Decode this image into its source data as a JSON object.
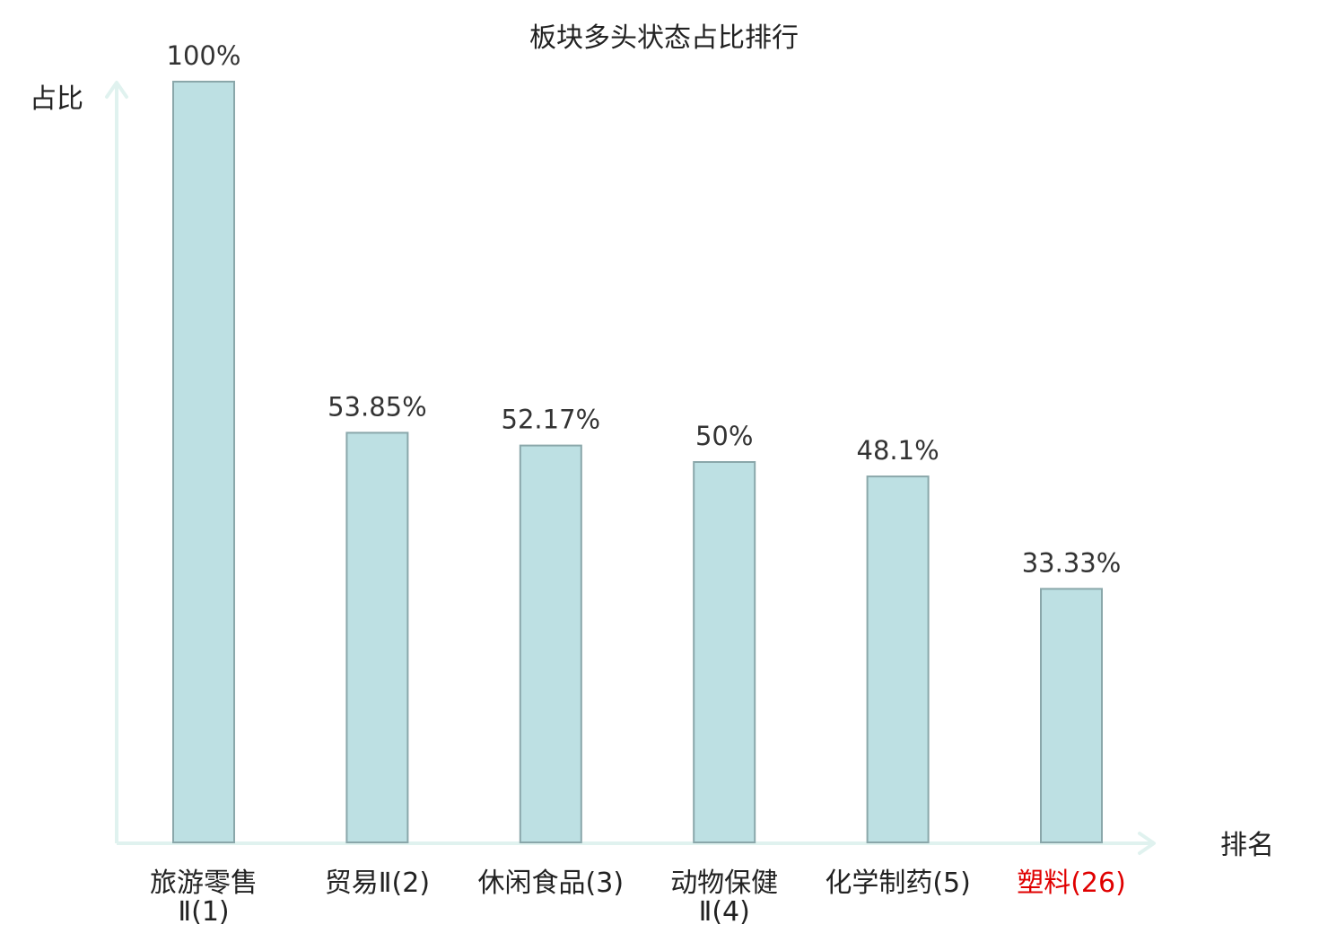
{
  "chart_data": {
    "type": "bar",
    "title": "板块多头状态占比排行",
    "xlabel": "排名",
    "ylabel": "占比",
    "categories": [
      {
        "name_lines": [
          "旅游零售",
          "Ⅱ(1)"
        ],
        "highlight": false
      },
      {
        "name_lines": [
          "贸易Ⅱ(2)"
        ],
        "highlight": false
      },
      {
        "name_lines": [
          "休闲食品(3)"
        ],
        "highlight": false
      },
      {
        "name_lines": [
          "动物保健",
          "Ⅱ(4)"
        ],
        "highlight": false
      },
      {
        "name_lines": [
          "化学制药(5)"
        ],
        "highlight": false
      },
      {
        "name_lines": [
          "塑料(26)"
        ],
        "highlight": true
      }
    ],
    "values": [
      100,
      53.85,
      52.17,
      50,
      48.1,
      33.33
    ],
    "value_labels": [
      "100%",
      "53.85%",
      "52.17%",
      "50%",
      "48.1%",
      "33.33%"
    ],
    "ylim": [
      0,
      100
    ],
    "grid": false,
    "legend": false,
    "colors": {
      "bar_fill": "#bde0e3",
      "bar_stroke": "#8aa7aa",
      "axis": "#e0f2ef",
      "text": "#222222",
      "highlight_text": "#e00000"
    }
  }
}
